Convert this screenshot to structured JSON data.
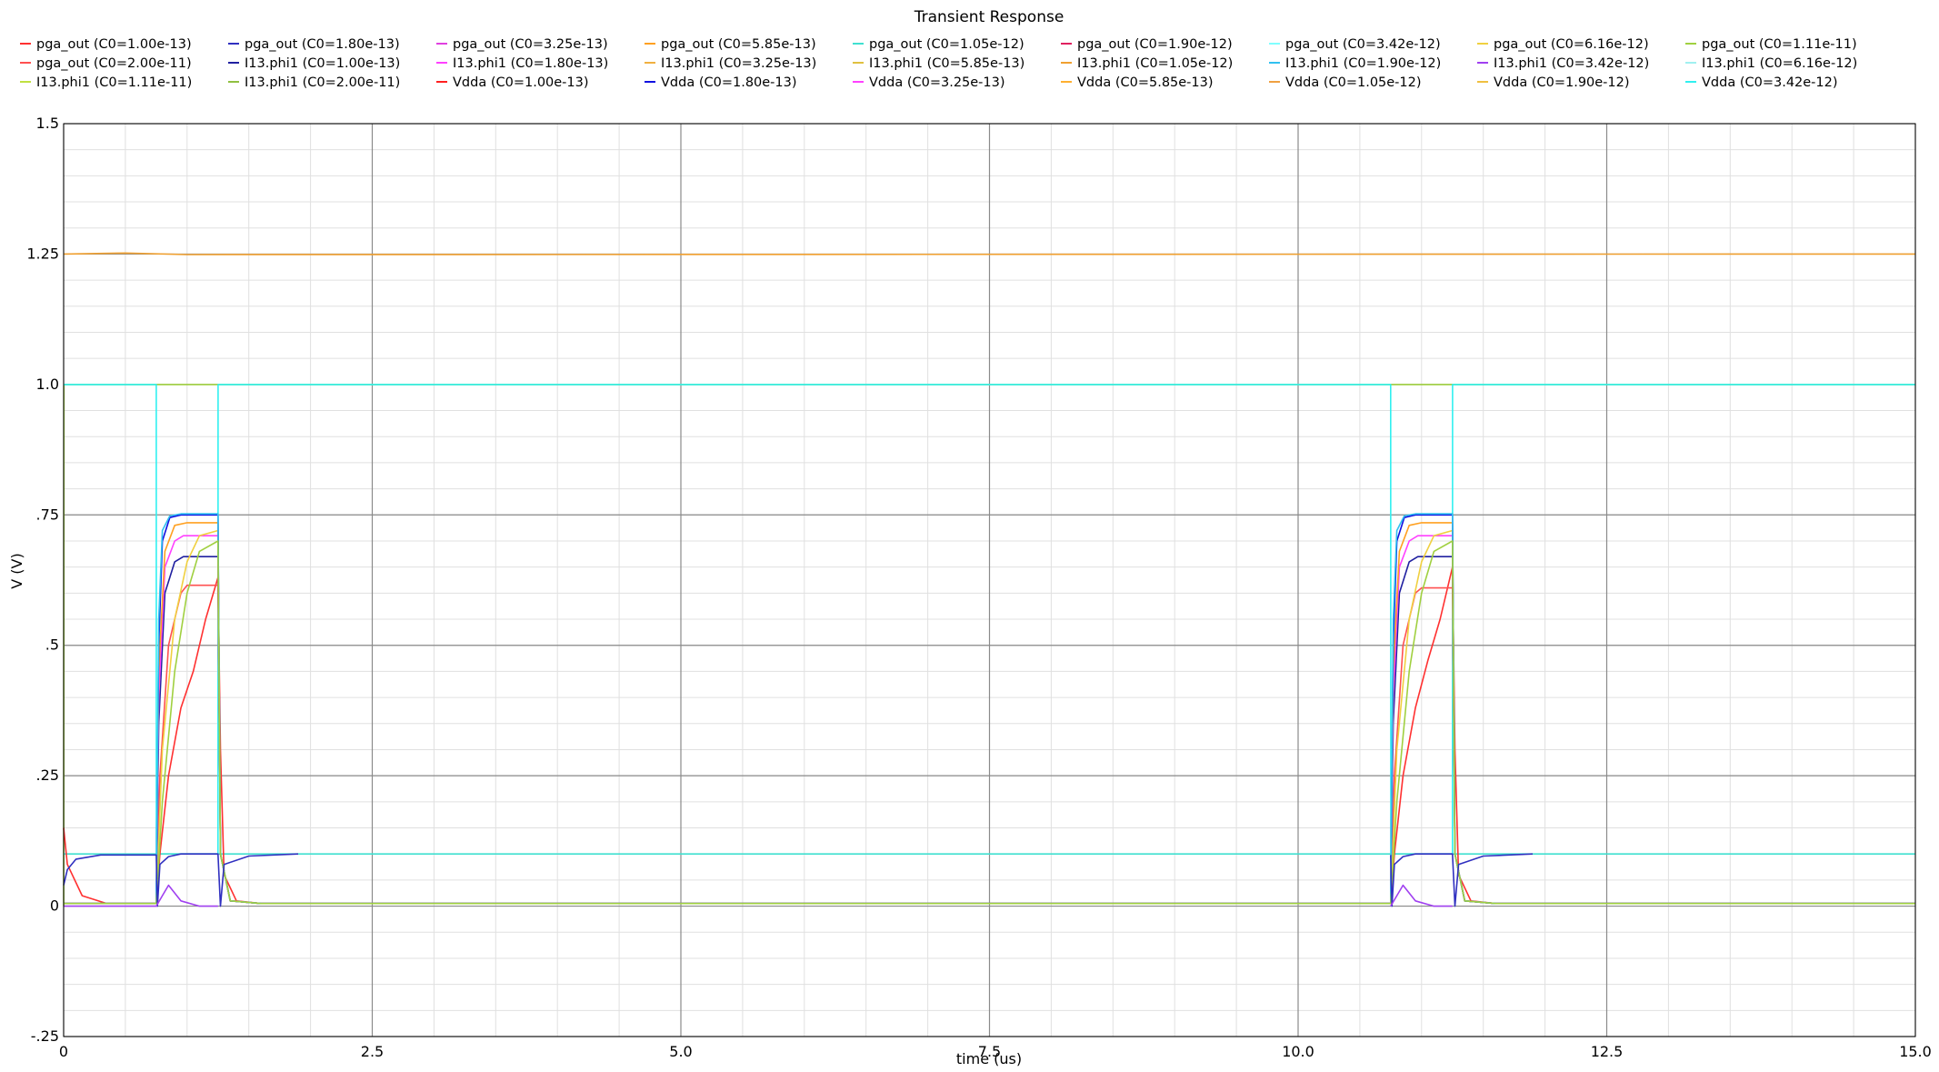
{
  "chart_data": {
    "type": "line",
    "title": "Transient Response",
    "xlabel": "time (us)",
    "ylabel": "V (V)",
    "xlim": [
      0,
      15.0
    ],
    "ylim": [
      -0.25,
      1.5
    ],
    "x_ticks": [
      0,
      2.5,
      5.0,
      7.5,
      10.0,
      12.5,
      15.0
    ],
    "x_tick_labels": [
      "0",
      "2.5",
      "5.0",
      "7.5",
      "10.0",
      "12.5",
      "15.0"
    ],
    "y_ticks": [
      -0.25,
      0,
      0.25,
      0.5,
      0.75,
      1.0,
      1.25,
      1.5
    ],
    "y_tick_labels": [
      "-.25",
      "0",
      ".25",
      ".5",
      ".75",
      "1.0",
      "1.25",
      "1.5"
    ],
    "grid": true,
    "legend_position": "top",
    "legend": [
      {
        "label": "pga_out (C0=1.00e-13)",
        "color": "#ff3030"
      },
      {
        "label": "pga_out (C0=1.80e-13)",
        "color": "#3030c0"
      },
      {
        "label": "pga_out (C0=3.25e-13)",
        "color": "#e040e0"
      },
      {
        "label": "pga_out (C0=5.85e-13)",
        "color": "#ffa020"
      },
      {
        "label": "pga_out (C0=1.05e-12)",
        "color": "#40e0d0"
      },
      {
        "label": "pga_out (C0=1.90e-12)",
        "color": "#e02060"
      },
      {
        "label": "pga_out (C0=3.42e-12)",
        "color": "#80ffff"
      },
      {
        "label": "pga_out (C0=6.16e-12)",
        "color": "#f0d040"
      },
      {
        "label": "pga_out (C0=1.11e-11)",
        "color": "#a0d040"
      },
      {
        "label": "pga_out (C0=2.00e-11)",
        "color": "#ff5050"
      },
      {
        "label": "I13.phi1 (C0=1.00e-13)",
        "color": "#2020a0"
      },
      {
        "label": "I13.phi1 (C0=1.80e-13)",
        "color": "#ff40ff"
      },
      {
        "label": "I13.phi1 (C0=3.25e-13)",
        "color": "#f0b040"
      },
      {
        "label": "I13.phi1 (C0=5.85e-13)",
        "color": "#e0c040"
      },
      {
        "label": "I13.phi1 (C0=1.05e-12)",
        "color": "#f0a030"
      },
      {
        "label": "I13.phi1 (C0=1.90e-12)",
        "color": "#30c0f0"
      },
      {
        "label": "I13.phi1 (C0=3.42e-12)",
        "color": "#a040f0"
      },
      {
        "label": "I13.phi1 (C0=6.16e-12)",
        "color": "#a0f0f0"
      },
      {
        "label": "I13.phi1 (C0=1.11e-11)",
        "color": "#c0e040"
      },
      {
        "label": "I13.phi1 (C0=2.00e-11)",
        "color": "#90c040"
      },
      {
        "label": "Vdda (C0=1.00e-13)",
        "color": "#ff2020"
      },
      {
        "label": "Vdda (C0=1.80e-13)",
        "color": "#1010e0"
      },
      {
        "label": "Vdda (C0=3.25e-13)",
        "color": "#ff40ff"
      },
      {
        "label": "Vdda (C0=5.85e-13)",
        "color": "#ffb030"
      },
      {
        "label": "Vdda (C0=1.05e-12)",
        "color": "#f0a040"
      },
      {
        "label": "Vdda (C0=1.90e-12)",
        "color": "#f0c040"
      },
      {
        "label": "Vdda (C0=3.42e-12)",
        "color": "#30f0f0"
      }
    ],
    "series": [
      {
        "color": "#a0d040",
        "x": [
          0,
          0.001,
          0.002,
          15.0
        ],
        "y": [
          0,
          0,
          1.0,
          1.0
        ]
      },
      {
        "color": "#30f0f0",
        "x": [
          0,
          0.75,
          0.751,
          1.25,
          1.251,
          10.75,
          10.751,
          11.25,
          11.251,
          15.0
        ],
        "y": [
          1.0,
          1.0,
          0.1,
          0.1,
          1.0,
          1.0,
          0.1,
          0.1,
          1.0,
          1.0
        ]
      },
      {
        "color": "#40e0d0",
        "x": [
          0,
          15.0
        ],
        "y": [
          0.1,
          0.1
        ]
      },
      {
        "color": "#f0a030",
        "x": [
          0,
          0.5,
          1.0,
          15.0
        ],
        "y": [
          1.25,
          1.252,
          1.249,
          1.25
        ]
      },
      {
        "color": "#ff3030",
        "x": [
          0,
          0.03,
          0.15,
          0.35,
          0.75,
          0.78,
          0.85,
          0.95,
          1.05,
          1.15,
          1.25,
          1.27,
          1.3,
          1.4,
          1.6,
          10.75,
          10.78,
          10.85,
          10.95,
          11.05,
          11.15,
          11.25,
          11.27,
          11.3,
          11.4,
          11.6,
          15.0
        ],
        "y": [
          0.15,
          0.08,
          0.02,
          0.005,
          0.005,
          0.1,
          0.25,
          0.38,
          0.45,
          0.55,
          0.63,
          0.3,
          0.06,
          0.01,
          0.005,
          0.005,
          0.1,
          0.25,
          0.38,
          0.47,
          0.55,
          0.65,
          0.3,
          0.06,
          0.01,
          0.005,
          0.005
        ]
      },
      {
        "color": "#ff5050",
        "x": [
          0,
          0.75,
          0.78,
          0.85,
          0.95,
          1.0,
          1.25,
          1.27,
          1.35,
          1.6,
          10.75,
          10.78,
          10.85,
          10.95,
          11.0,
          11.25,
          11.27,
          11.35,
          11.6,
          15.0
        ],
        "y": [
          0.005,
          0.005,
          0.25,
          0.5,
          0.6,
          0.615,
          0.615,
          0.1,
          0.01,
          0.005,
          0.005,
          0.25,
          0.5,
          0.6,
          0.61,
          0.61,
          0.1,
          0.01,
          0.005,
          0.005
        ]
      },
      {
        "color": "#2020a0",
        "x": [
          0,
          0.75,
          0.77,
          0.82,
          0.9,
          0.97,
          1.25,
          1.27,
          1.35,
          1.6,
          10.75,
          10.77,
          10.82,
          10.9,
          10.97,
          11.25,
          11.27,
          11.35,
          11.6,
          15.0
        ],
        "y": [
          0.005,
          0.005,
          0.35,
          0.6,
          0.66,
          0.67,
          0.67,
          0.1,
          0.01,
          0.005,
          0.005,
          0.35,
          0.6,
          0.66,
          0.67,
          0.67,
          0.1,
          0.01,
          0.005,
          0.005
        ]
      },
      {
        "color": "#ff40ff",
        "x": [
          0,
          0.75,
          0.77,
          0.82,
          0.9,
          0.97,
          1.25,
          1.27,
          1.35,
          1.6,
          10.75,
          10.77,
          10.82,
          10.9,
          10.97,
          11.25,
          11.27,
          11.35,
          11.6,
          15.0
        ],
        "y": [
          0.005,
          0.005,
          0.4,
          0.65,
          0.7,
          0.71,
          0.71,
          0.1,
          0.01,
          0.005,
          0.005,
          0.4,
          0.65,
          0.7,
          0.71,
          0.71,
          0.1,
          0.01,
          0.005,
          0.005
        ]
      },
      {
        "color": "#f0d040",
        "x": [
          0,
          0.75,
          0.8,
          0.9,
          1.0,
          1.1,
          1.25,
          1.27,
          1.35,
          1.6,
          10.75,
          10.8,
          10.9,
          11.0,
          11.1,
          11.25,
          11.27,
          11.35,
          11.6,
          15.0
        ],
        "y": [
          0.005,
          0.005,
          0.3,
          0.55,
          0.66,
          0.71,
          0.72,
          0.1,
          0.01,
          0.005,
          0.005,
          0.3,
          0.55,
          0.66,
          0.71,
          0.72,
          0.1,
          0.01,
          0.005,
          0.005
        ]
      },
      {
        "color": "#ffa020",
        "x": [
          0,
          0.75,
          0.77,
          0.82,
          0.9,
          1.0,
          1.25,
          1.27,
          1.35,
          1.6,
          10.75,
          10.77,
          10.82,
          10.9,
          11.0,
          11.25,
          11.27,
          11.35,
          11.6,
          15.0
        ],
        "y": [
          0.005,
          0.005,
          0.45,
          0.68,
          0.73,
          0.735,
          0.735,
          0.1,
          0.01,
          0.005,
          0.005,
          0.45,
          0.68,
          0.73,
          0.735,
          0.735,
          0.1,
          0.01,
          0.005,
          0.005
        ]
      },
      {
        "color": "#1010e0",
        "x": [
          0,
          0.75,
          0.77,
          0.8,
          0.86,
          0.95,
          1.25,
          1.27,
          1.35,
          1.6,
          10.75,
          10.77,
          10.8,
          10.86,
          10.95,
          11.25,
          11.27,
          11.35,
          11.6,
          15.0
        ],
        "y": [
          0.005,
          0.005,
          0.5,
          0.7,
          0.745,
          0.75,
          0.75,
          0.1,
          0.01,
          0.005,
          0.005,
          0.5,
          0.7,
          0.745,
          0.75,
          0.75,
          0.1,
          0.01,
          0.005,
          0.005
        ]
      },
      {
        "color": "#30c0f0",
        "x": [
          0,
          0.75,
          0.77,
          0.8,
          0.86,
          0.95,
          1.25,
          1.27,
          1.35,
          1.6,
          10.75,
          10.77,
          10.8,
          10.86,
          10.95,
          11.25,
          11.27,
          11.35,
          11.6,
          15.0
        ],
        "y": [
          0.005,
          0.005,
          0.55,
          0.72,
          0.748,
          0.752,
          0.752,
          0.1,
          0.01,
          0.005,
          0.005,
          0.55,
          0.72,
          0.748,
          0.752,
          0.752,
          0.1,
          0.01,
          0.005,
          0.005
        ]
      },
      {
        "color": "#a0d040",
        "x": [
          0,
          0.75,
          0.8,
          0.9,
          1.0,
          1.1,
          1.25,
          1.27,
          1.35,
          1.6,
          10.75,
          10.8,
          10.9,
          11.0,
          11.1,
          11.25,
          11.27,
          11.35,
          11.6,
          15.0
        ],
        "y": [
          0.005,
          0.005,
          0.2,
          0.45,
          0.6,
          0.68,
          0.7,
          0.1,
          0.01,
          0.005,
          0.005,
          0.2,
          0.45,
          0.6,
          0.68,
          0.7,
          0.1,
          0.01,
          0.005,
          0.005
        ]
      },
      {
        "color": "#3030c0",
        "x": [
          0,
          0.03,
          0.1,
          0.3,
          0.75,
          0.76,
          0.78,
          0.85,
          0.95,
          1.25,
          1.27,
          1.3,
          1.5,
          1.9
        ],
        "y": [
          0.04,
          0.07,
          0.09,
          0.098,
          0.098,
          0.0,
          0.08,
          0.095,
          0.1,
          0.1,
          0.0,
          0.08,
          0.096,
          0.1
        ]
      },
      {
        "color": "#3030c0",
        "x": [
          10.75,
          10.76,
          10.78,
          10.85,
          10.95,
          11.25,
          11.27,
          11.3,
          11.5,
          11.9
        ],
        "y": [
          0.098,
          0.0,
          0.08,
          0.095,
          0.1,
          0.1,
          0.0,
          0.08,
          0.096,
          0.1
        ]
      },
      {
        "color": "#a040f0",
        "x": [
          0,
          0.75,
          0.8,
          0.85,
          0.95,
          1.1,
          1.25
        ],
        "y": [
          0.0,
          0.0,
          0.02,
          0.04,
          0.01,
          0.0,
          0.0
        ]
      },
      {
        "color": "#a040f0",
        "x": [
          10.75,
          10.8,
          10.85,
          10.95,
          11.1,
          11.25
        ],
        "y": [
          0.0,
          0.02,
          0.04,
          0.01,
          0.0,
          0.0
        ]
      }
    ]
  }
}
